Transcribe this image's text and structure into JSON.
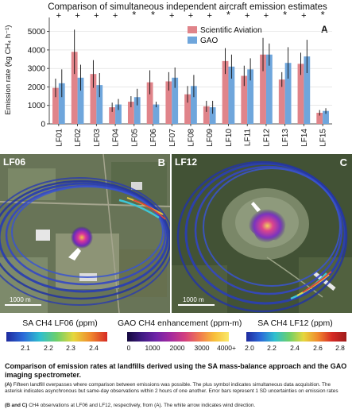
{
  "chart_data": {
    "type": "bar",
    "title": "Comparison of simultaneous independent aircraft emission estimates",
    "panel_label": "A",
    "ylabel": "Emission rate (kg CH₄ h⁻¹)",
    "ylim": [
      0,
      5500
    ],
    "yticks": [
      0,
      1000,
      2000,
      3000,
      4000,
      5000
    ],
    "categories": [
      "LF01",
      "LF02",
      "LF03",
      "LF04",
      "LF05",
      "LF06",
      "LF07",
      "LF08",
      "LF09",
      "LF10",
      "LF11",
      "LF12",
      "LF13",
      "LF14",
      "LF15"
    ],
    "markers": [
      "+",
      "+",
      "+",
      "+",
      "*",
      "*",
      "+",
      "+",
      "+",
      "*",
      "+",
      "+",
      "*",
      "+",
      "*"
    ],
    "series": [
      {
        "name": "Scientific Aviation",
        "color": "#e0848a",
        "values": [
          1950,
          3900,
          2700,
          900,
          1200,
          2250,
          2300,
          1600,
          950,
          3400,
          2600,
          3750,
          2400,
          3250,
          600
        ],
        "errors": [
          500,
          1200,
          750,
          250,
          300,
          650,
          500,
          450,
          300,
          700,
          550,
          900,
          400,
          600,
          150
        ]
      },
      {
        "name": "GAO",
        "color": "#6fa6dc",
        "values": [
          2200,
          2500,
          2100,
          1050,
          1450,
          1050,
          2500,
          2050,
          900,
          3100,
          2950,
          3750,
          3300,
          3650,
          700
        ],
        "errors": [
          750,
          700,
          650,
          300,
          450,
          150,
          550,
          600,
          350,
          650,
          600,
          600,
          850,
          900,
          150
        ]
      }
    ],
    "legend_position": "top-right"
  },
  "panels": {
    "b": {
      "label": "B",
      "site": "LF06",
      "scale": "1000 m"
    },
    "c": {
      "label": "C",
      "site": "LF12",
      "scale": "1000 m"
    }
  },
  "colorbars": [
    {
      "title": "SA CH4 LF06 (ppm)",
      "ticks": [
        "2.1",
        "2.2",
        "2.3",
        "2.4"
      ]
    },
    {
      "title": "GAO CH4 enhancement (ppm-m)",
      "ticks": [
        "0",
        "1000",
        "2000",
        "3000",
        "4000+"
      ]
    },
    {
      "title": "SA CH4 LF12 (ppm)",
      "ticks": [
        "2.0",
        "2.2",
        "2.4",
        "2.6",
        "2.8"
      ]
    }
  ],
  "caption": {
    "heading": "Comparison of emission rates at landfills derived using the SA mass-balance approach and the GAO imaging spectrometer.",
    "a_label": "(A)",
    "a_text": "Fifteen landfill overpasses where comparison between emissions was possible. The plus symbol indicates simultaneous data acquisition. The asterisk indicates asynchronous but same-day observations within 2 hours of one another. Error bars represent 1 SD uncertainties on emission rates",
    "bc_label": "(B and C)",
    "bc_text": "CH4 observations at LF06 and LF12, respectively, from (A). The white arrow indicates wind direction."
  }
}
